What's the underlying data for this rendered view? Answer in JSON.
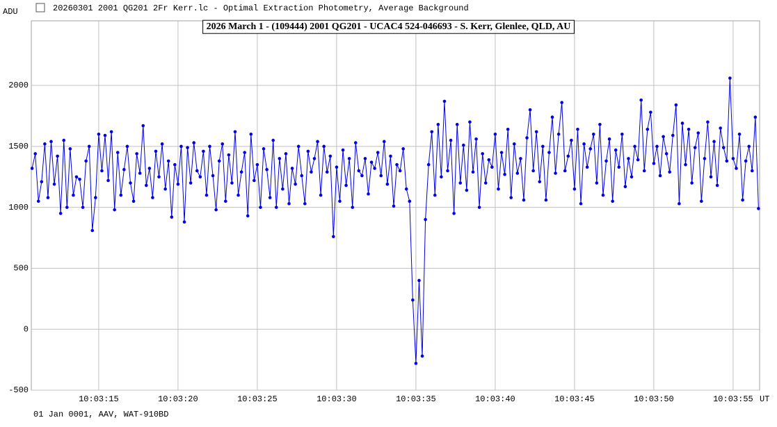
{
  "window_title": "20260301 2001 QG201 2Fr Kerr.lc - Optimal Extraction Photometry, Average Background",
  "footer": "01 Jan 0001, AAV, WAT-910BD",
  "chart_data": {
    "type": "line",
    "title": "2026 March 1 - (109444) 2001 QG201 - UCAC4 524-046693 - S. Kerr, Glenlee, QLD, AU",
    "y_label": "ADU",
    "x_label": "UT",
    "color": "#0000e0",
    "grid": true,
    "xlim": [
      10.75,
      56.67
    ],
    "ylim": [
      -500,
      2530
    ],
    "xticks": [
      {
        "value": 15,
        "label": "10:03:15"
      },
      {
        "value": 20,
        "label": "10:03:20"
      },
      {
        "value": 25,
        "label": "10:03:25"
      },
      {
        "value": 30,
        "label": "10:03:30"
      },
      {
        "value": 35,
        "label": "10:03:35"
      },
      {
        "value": 40,
        "label": "10:03:40"
      },
      {
        "value": 45,
        "label": "10:03:45"
      },
      {
        "value": 50,
        "label": "10:03:50"
      },
      {
        "value": 55,
        "label": "10:03:55"
      }
    ],
    "yticks": [
      -500,
      0,
      500,
      1000,
      1500,
      2000
    ],
    "x": [
      10.8,
      11,
      11.2,
      11.4,
      11.6,
      11.8,
      12,
      12.2,
      12.4,
      12.6,
      12.8,
      13,
      13.2,
      13.4,
      13.6,
      13.8,
      14,
      14.2,
      14.4,
      14.6,
      14.8,
      15,
      15.2,
      15.4,
      15.6,
      15.8,
      16,
      16.2,
      16.4,
      16.6,
      16.8,
      17,
      17.2,
      17.4,
      17.6,
      17.8,
      18,
      18.2,
      18.4,
      18.6,
      18.8,
      19,
      19.2,
      19.4,
      19.6,
      19.8,
      20,
      20.2,
      20.4,
      20.6,
      20.8,
      21,
      21.2,
      21.4,
      21.6,
      21.8,
      22,
      22.2,
      22.4,
      22.6,
      22.8,
      23,
      23.2,
      23.4,
      23.6,
      23.8,
      24,
      24.2,
      24.4,
      24.6,
      24.8,
      25,
      25.2,
      25.4,
      25.6,
      25.8,
      26,
      26.2,
      26.4,
      26.6,
      26.8,
      27,
      27.2,
      27.4,
      27.6,
      27.8,
      28,
      28.2,
      28.4,
      28.6,
      28.8,
      29,
      29.2,
      29.4,
      29.6,
      29.8,
      30,
      30.2,
      30.4,
      30.6,
      30.8,
      31,
      31.2,
      31.4,
      31.6,
      31.8,
      32,
      32.2,
      32.4,
      32.6,
      32.8,
      33,
      33.2,
      33.4,
      33.6,
      33.8,
      34,
      34.2,
      34.4,
      34.6,
      34.8,
      35,
      35.2,
      35.4,
      35.6,
      35.8,
      36,
      36.2,
      36.4,
      36.6,
      36.8,
      37,
      37.2,
      37.4,
      37.6,
      37.8,
      38,
      38.2,
      38.4,
      38.6,
      38.8,
      39,
      39.2,
      39.4,
      39.6,
      39.8,
      40,
      40.2,
      40.4,
      40.6,
      40.8,
      41,
      41.2,
      41.4,
      41.6,
      41.8,
      42,
      42.2,
      42.4,
      42.6,
      42.8,
      43,
      43.2,
      43.4,
      43.6,
      43.8,
      44,
      44.2,
      44.4,
      44.6,
      44.8,
      45,
      45.2,
      45.4,
      45.6,
      45.8,
      46,
      46.2,
      46.4,
      46.6,
      46.8,
      47,
      47.2,
      47.4,
      47.6,
      47.8,
      48,
      48.2,
      48.4,
      48.6,
      48.8,
      49,
      49.2,
      49.4,
      49.6,
      49.8,
      50,
      50.2,
      50.4,
      50.6,
      50.8,
      51,
      51.2,
      51.4,
      51.6,
      51.8,
      52,
      52.2,
      52.4,
      52.6,
      52.8,
      53,
      53.2,
      53.4,
      53.6,
      53.8,
      54,
      54.2,
      54.4,
      54.6,
      54.8,
      55,
      55.2,
      55.4,
      55.6,
      55.8,
      56,
      56.2,
      56.4,
      56.6
    ],
    "series": [
      {
        "name": "ADU",
        "color": "#0000e0",
        "values": [
          1320,
          1440,
          1050,
          1210,
          1520,
          1080,
          1540,
          1190,
          1420,
          950,
          1550,
          1000,
          1480,
          1100,
          1250,
          1230,
          1000,
          1380,
          1500,
          810,
          1080,
          1600,
          1300,
          1590,
          1220,
          1620,
          980,
          1450,
          1100,
          1310,
          1500,
          1200,
          1050,
          1440,
          1280,
          1670,
          1180,
          1320,
          1080,
          1460,
          1250,
          1520,
          1150,
          1380,
          920,
          1350,
          1190,
          1500,
          880,
          1490,
          1200,
          1530,
          1300,
          1250,
          1460,
          1100,
          1500,
          1260,
          980,
          1380,
          1520,
          1050,
          1430,
          1200,
          1620,
          1100,
          1290,
          1450,
          930,
          1600,
          1220,
          1350,
          1000,
          1480,
          1310,
          1080,
          1550,
          1000,
          1400,
          1150,
          1440,
          1030,
          1320,
          1190,
          1500,
          1260,
          1030,
          1460,
          1290,
          1400,
          1540,
          1100,
          1500,
          1290,
          1420,
          760,
          1330,
          1050,
          1470,
          1180,
          1400,
          1000,
          1530,
          1300,
          1260,
          1400,
          1110,
          1370,
          1320,
          1450,
          1260,
          1540,
          1190,
          1420,
          1010,
          1350,
          1300,
          1480,
          1150,
          1050,
          240,
          -280,
          400,
          -220,
          900,
          1350,
          1620,
          1100,
          1680,
          1250,
          1870,
          1300,
          1550,
          950,
          1680,
          1200,
          1510,
          1140,
          1700,
          1290,
          1560,
          1000,
          1440,
          1200,
          1390,
          1330,
          1600,
          1150,
          1450,
          1270,
          1640,
          1080,
          1520,
          1280,
          1400,
          1060,
          1570,
          1800,
          1300,
          1620,
          1210,
          1500,
          1060,
          1450,
          1740,
          1280,
          1600,
          1860,
          1300,
          1420,
          1550,
          1150,
          1640,
          1030,
          1520,
          1330,
          1480,
          1600,
          1200,
          1680,
          1100,
          1380,
          1560,
          1050,
          1470,
          1330,
          1600,
          1170,
          1400,
          1250,
          1500,
          1390,
          1880,
          1300,
          1640,
          1780,
          1360,
          1500,
          1260,
          1580,
          1440,
          1290,
          1590,
          1840,
          1030,
          1690,
          1350,
          1640,
          1200,
          1490,
          1610,
          1050,
          1400,
          1700,
          1250,
          1540,
          1180,
          1650,
          1490,
          1380,
          2060,
          1400,
          1320,
          1600,
          1060,
          1380,
          1500,
          1300,
          1740,
          990
        ]
      }
    ]
  }
}
